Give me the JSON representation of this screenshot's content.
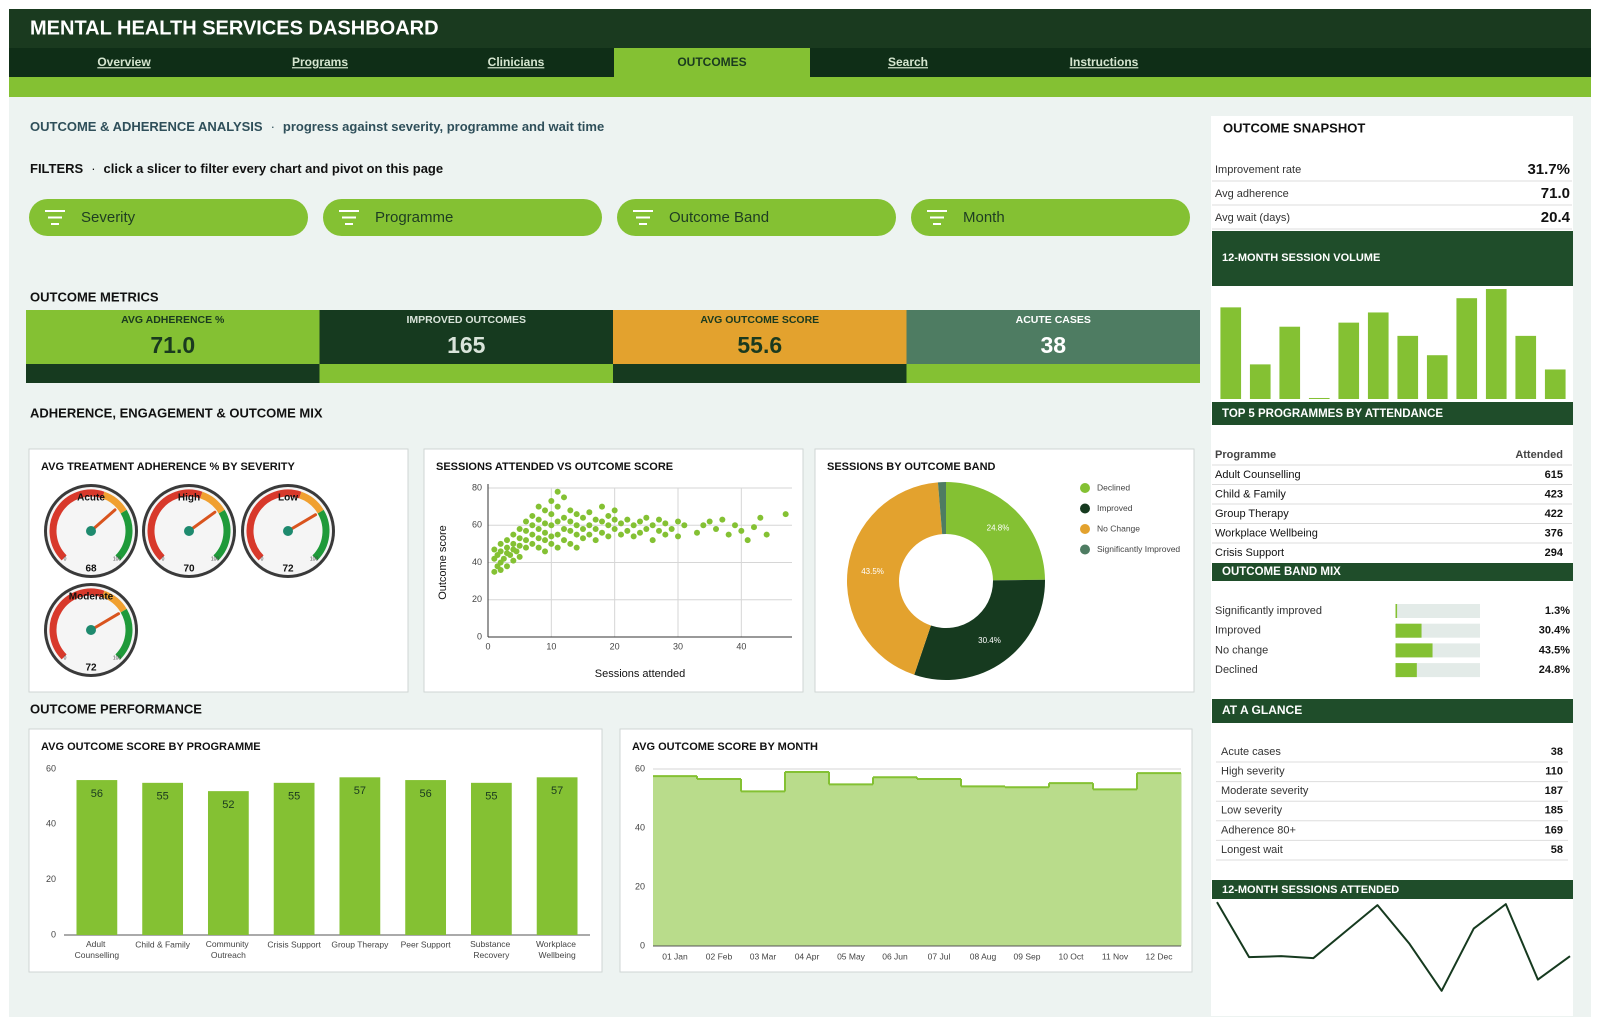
{
  "header": {
    "title": "MENTAL HEALTH SERVICES DASHBOARD"
  },
  "nav": {
    "tabs": [
      "Overview",
      "Programs",
      "Clinicians",
      "OUTCOMES",
      "Search",
      "Instructions"
    ],
    "active": 3
  },
  "analysis": {
    "title": "OUTCOME & ADHERENCE ANALYSIS",
    "separator": "·",
    "subtitle": "progress against severity, programme and wait time"
  },
  "filters": {
    "title": "FILTERS",
    "separator": "·",
    "hint": "click a slicer to filter every chart and pivot on this page",
    "slicers": [
      "Severity",
      "Programme",
      "Outcome Band",
      "Month"
    ]
  },
  "metrics": {
    "title": "OUTCOME METRICS",
    "tiles": [
      {
        "label": "AVG ADHERENCE %",
        "value": "71.0",
        "color": "#84c133",
        "strip": "#163a1f"
      },
      {
        "label": "IMPROVED OUTCOMES",
        "value": "165",
        "color": "#163a1f",
        "strip": "#84c133"
      },
      {
        "label": "AVG OUTCOME SCORE",
        "value": "55.6",
        "color": "#e3a22e",
        "strip": "#163a1f"
      },
      {
        "label": "ACUTE CASES",
        "value": "38",
        "color": "#4e7c62",
        "strip": "#84c133"
      }
    ]
  },
  "mix_title": "ADHERENCE, ENGAGEMENT & OUTCOME MIX",
  "performance_title": "OUTCOME PERFORMANCE",
  "chart_data": [
    {
      "type": "gauge",
      "title": "AVG TREATMENT ADHERENCE % BY SEVERITY",
      "categories": [
        "Acute",
        "High",
        "Low",
        "Moderate"
      ],
      "values": [
        68,
        70,
        72,
        72
      ],
      "ylim": [
        0,
        100
      ]
    },
    {
      "type": "scatter",
      "title": "SESSIONS ATTENDED VS OUTCOME SCORE",
      "xlabel": "Sessions attended",
      "ylabel": "Outcome score",
      "color": "#84c133",
      "xlim": [
        0,
        48
      ],
      "ylim": [
        0,
        80
      ],
      "xticks": [
        0,
        10,
        20,
        30,
        40
      ],
      "yticks": [
        0,
        20,
        40,
        60,
        80
      ],
      "grid": true,
      "x": [
        1,
        1,
        1,
        1.5,
        1.5,
        2,
        2,
        2,
        2,
        2.5,
        3,
        3,
        3,
        3,
        3.5,
        4,
        4,
        4,
        4,
        4.5,
        5,
        5,
        5,
        5,
        6,
        6,
        6,
        6,
        7,
        7,
        7,
        7,
        8,
        8,
        8,
        8,
        8,
        9,
        9,
        9,
        9,
        9,
        10,
        10,
        10,
        10,
        10,
        11,
        11,
        11,
        11,
        11,
        12,
        12,
        12,
        12,
        13,
        13,
        13,
        13,
        14,
        14,
        14,
        14,
        15,
        15,
        15,
        16,
        16,
        16,
        17,
        17,
        17,
        18,
        18,
        18,
        19,
        19,
        19,
        20,
        20,
        20,
        21,
        21,
        22,
        22,
        23,
        23,
        24,
        24,
        25,
        25,
        26,
        26,
        27,
        27,
        28,
        28,
        29,
        30,
        30,
        31,
        33,
        34,
        35,
        36,
        37,
        38,
        39,
        40,
        41,
        42,
        43,
        44,
        47
      ],
      "values": [
        35,
        42,
        47,
        38,
        44,
        36,
        40,
        46,
        50,
        42,
        38,
        45,
        48,
        52,
        44,
        41,
        47,
        50,
        55,
        46,
        43,
        49,
        53,
        58,
        48,
        52,
        57,
        62,
        50,
        55,
        60,
        65,
        48,
        53,
        58,
        63,
        70,
        46,
        52,
        56,
        61,
        68,
        50,
        54,
        60,
        66,
        73,
        48,
        55,
        62,
        70,
        78,
        52,
        58,
        64,
        75,
        50,
        57,
        62,
        68,
        48,
        55,
        60,
        66,
        53,
        58,
        64,
        55,
        60,
        67,
        52,
        58,
        63,
        56,
        62,
        70,
        54,
        60,
        65,
        58,
        63,
        68,
        55,
        61,
        57,
        63,
        54,
        60,
        56,
        62,
        58,
        64,
        52,
        60,
        57,
        63,
        55,
        61,
        58,
        54,
        62,
        60,
        56,
        60,
        62,
        58,
        63,
        55,
        60,
        57,
        52,
        59,
        64,
        55,
        66
      ]
    },
    {
      "type": "pie",
      "title": "SESSIONS BY OUTCOME BAND",
      "categories": [
        "Declined",
        "Improved",
        "No Change",
        "Significantly Improved"
      ],
      "values": [
        24.8,
        30.4,
        43.5,
        1.3
      ],
      "value_labels": [
        "24.8%",
        "30.4%",
        "43.5%",
        null
      ],
      "colors": [
        "#84c133",
        "#163a1f",
        "#e3a22e",
        "#4e7c62"
      ]
    },
    {
      "type": "bar",
      "title": "AVG OUTCOME SCORE BY PROGRAMME",
      "color": "#84c133",
      "categories": [
        "Adult Counselling",
        "Child & Family",
        "Community Outreach",
        "Crisis Support",
        "Group Therapy",
        "Peer Support",
        "Substance Recovery",
        "Workplace Wellbeing"
      ],
      "values": [
        56,
        55,
        52,
        55,
        57,
        56,
        55,
        57
      ],
      "ylim": [
        0,
        60
      ],
      "yticks": [
        0,
        20,
        40,
        60
      ],
      "data_labels": true
    },
    {
      "type": "area",
      "title": "AVG OUTCOME SCORE BY MONTH",
      "color": "#84c133",
      "fill_color": "#b9dc8b",
      "step": true,
      "categories": [
        "01 Jan",
        "02 Feb",
        "03 Mar",
        "04 Apr",
        "05 May",
        "06 Jun",
        "07 Jul",
        "08 Aug",
        "09 Sep",
        "10 Oct",
        "11 Nov",
        "12 Dec"
      ],
      "values": [
        57.6,
        56.6,
        52.4,
        59,
        54.8,
        57.2,
        56.6,
        54.1,
        53.8,
        55.2,
        53.1,
        58.6
      ],
      "ylim": [
        0,
        60
      ],
      "yticks": [
        0,
        20,
        40,
        60
      ],
      "grid": true
    },
    {
      "type": "bar",
      "title": "12-MONTH SESSION VOLUME",
      "color": "#84c133",
      "values": [
        90,
        34,
        71,
        1,
        75,
        85,
        62,
        43,
        99,
        108,
        62,
        29
      ],
      "ylim": [
        0,
        110
      ]
    },
    {
      "type": "line",
      "title": "12-MONTH SESSIONS ATTENDED",
      "color": "#163a1f",
      "values": [
        96,
        42,
        43,
        41,
        67,
        93,
        55,
        9,
        70,
        94,
        20,
        43
      ],
      "ylim": [
        0,
        100
      ]
    }
  ],
  "snapshot": {
    "title": "OUTCOME SNAPSHOT",
    "rows": [
      [
        "Improvement rate",
        "31.7%"
      ],
      [
        "Avg adherence",
        "71.0"
      ],
      [
        "Avg wait (days)",
        "20.4"
      ]
    ]
  },
  "top_programmes": {
    "title": "TOP 5 PROGRAMMES BY ATTENDANCE",
    "columns": [
      "Programme",
      "Attended"
    ],
    "rows": [
      [
        "Adult Counselling",
        "615"
      ],
      [
        "Child & Family",
        "423"
      ],
      [
        "Group Therapy",
        "422"
      ],
      [
        "Workplace Wellbeing",
        "376"
      ],
      [
        "Crisis Support",
        "294"
      ]
    ]
  },
  "band_mix": {
    "title": "OUTCOME BAND MIX",
    "categories": [
      "Significantly improved",
      "Improved",
      "No change",
      "Declined"
    ],
    "values": [
      1.3,
      30.4,
      43.5,
      24.8
    ],
    "value_labels": [
      "1.3%",
      "30.4%",
      "43.5%",
      "24.8%"
    ],
    "xlim": [
      0,
      100
    ],
    "color": "#84c133"
  },
  "at_a_glance": {
    "title": "AT A GLANCE",
    "rows": [
      [
        "Acute cases",
        "38"
      ],
      [
        "High severity",
        "110"
      ],
      [
        "Moderate severity",
        "187"
      ],
      [
        "Low severity",
        "185"
      ],
      [
        "Adherence 80+",
        "169"
      ],
      [
        "Longest wait",
        "58"
      ]
    ]
  }
}
